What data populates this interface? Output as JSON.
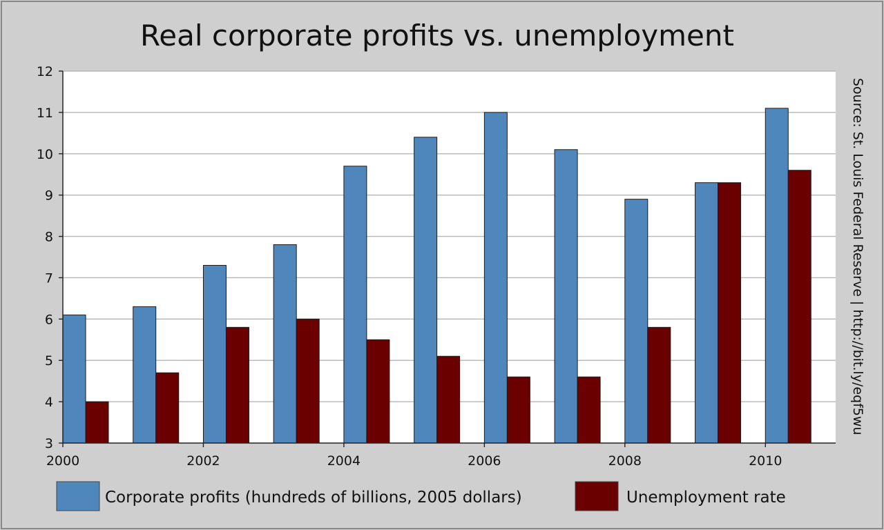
{
  "chart_data": {
    "type": "bar",
    "title": "Real corporate profits vs. unemployment",
    "xlabel": "",
    "ylabel": "",
    "ylim": [
      3,
      12
    ],
    "yticks": [
      3,
      4,
      5,
      6,
      7,
      8,
      9,
      10,
      11,
      12
    ],
    "categories": [
      "2000",
      "2001",
      "2002",
      "2003",
      "2004",
      "2005",
      "2006",
      "2007",
      "2008",
      "2009",
      "2010"
    ],
    "xtick_labels": [
      "2000",
      "2002",
      "2004",
      "2006",
      "2008",
      "2010"
    ],
    "grid": true,
    "series": [
      {
        "name": "Corporate profits (hundreds of billions, 2005 dollars)",
        "color": "#4f87bd",
        "values": [
          6.1,
          6.3,
          7.3,
          7.8,
          9.7,
          10.4,
          11.0,
          10.1,
          8.9,
          9.3,
          11.1
        ]
      },
      {
        "name": "Unemployment rate",
        "color": "#6b0000",
        "values": [
          4.0,
          4.7,
          5.8,
          6.0,
          5.5,
          5.1,
          4.6,
          4.6,
          5.8,
          9.3,
          9.6
        ]
      }
    ],
    "source": "Source: St. Louis Federal Reserve | http://bit.ly/eqf5wu",
    "legend_position": "bottom"
  }
}
